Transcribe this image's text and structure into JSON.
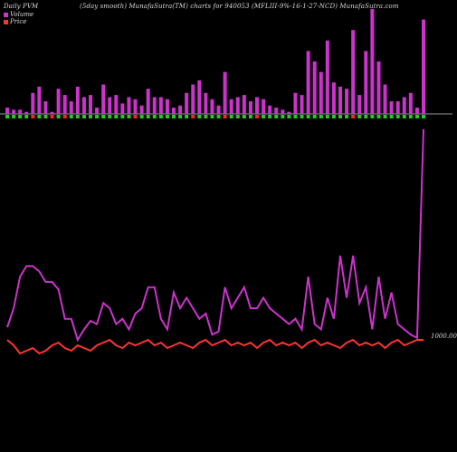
{
  "header": {
    "left": "Daily PVM",
    "center": "(5day smooth) MunafaSutra(TM) charts for 940053",
    "right": "(MFLIII-9%-16-1-27-NCD) MunafaSutra.com"
  },
  "legend": [
    {
      "label": "Volume",
      "color": "#cc33cc"
    },
    {
      "label": "Price",
      "color": "#ff3333"
    }
  ],
  "price_label": "1000.00",
  "chart_data": {
    "type": "line",
    "panels": [
      "volume bars above baseline",
      "price/volume lines below"
    ],
    "x": [
      1,
      2,
      3,
      4,
      5,
      6,
      7,
      8,
      9,
      10,
      11,
      12,
      13,
      14,
      15,
      16,
      17,
      18,
      19,
      20,
      21,
      22,
      23,
      24,
      25,
      26,
      27,
      28,
      29,
      30,
      31,
      32,
      33,
      34,
      35,
      36,
      37,
      38,
      39,
      40,
      41,
      42,
      43,
      44,
      45,
      46,
      47,
      48,
      49,
      50,
      51,
      52,
      53,
      54,
      55,
      56,
      57,
      58,
      59,
      60,
      61,
      62,
      63,
      64,
      65,
      66
    ],
    "volume_bars": [
      3,
      2,
      2,
      1,
      10,
      13,
      6,
      1,
      12,
      9,
      6,
      13,
      8,
      9,
      3,
      14,
      8,
      9,
      5,
      8,
      7,
      4,
      12,
      8,
      8,
      7,
      3,
      4,
      10,
      14,
      16,
      10,
      7,
      4,
      20,
      7,
      8,
      9,
      6,
      8,
      7,
      4,
      3,
      2,
      1,
      10,
      9,
      30,
      25,
      20,
      35,
      15,
      13,
      12,
      40,
      9,
      30,
      50,
      25,
      14,
      6,
      6,
      8,
      10,
      3,
      45
    ],
    "volume_bar_colors": [
      "green",
      "green",
      "green",
      "green",
      "red",
      "green",
      "green",
      "red",
      "green",
      "red",
      "green",
      "green",
      "green",
      "green",
      "green",
      "green",
      "green",
      "green",
      "green",
      "green",
      "red",
      "green",
      "green",
      "green",
      "green",
      "green",
      "green",
      "green",
      "green",
      "red",
      "green",
      "green",
      "green",
      "green",
      "red",
      "green",
      "green",
      "green",
      "green",
      "red",
      "green",
      "green",
      "green",
      "green",
      "green",
      "green",
      "green",
      "green",
      "green",
      "green",
      "green",
      "green",
      "green",
      "green",
      "red",
      "green",
      "green",
      "green",
      "green",
      "green",
      "green",
      "green",
      "green",
      "green",
      "green",
      "green"
    ],
    "series": [
      {
        "name": "Volume",
        "color": "#cc33cc",
        "values": [
          12,
          30,
          60,
          70,
          70,
          65,
          55,
          55,
          48,
          20,
          20,
          0,
          10,
          18,
          15,
          35,
          30,
          15,
          20,
          10,
          25,
          30,
          50,
          50,
          20,
          10,
          45,
          30,
          40,
          30,
          20,
          25,
          5,
          8,
          50,
          30,
          40,
          50,
          30,
          30,
          40,
          30,
          25,
          20,
          15,
          20,
          10,
          60,
          15,
          10,
          40,
          20,
          80,
          40,
          80,
          35,
          50,
          10,
          60,
          20,
          45,
          15,
          10,
          5,
          2,
          200
        ]
      },
      {
        "name": "Price",
        "color": "#ff3333",
        "values": [
          1000,
          999.8,
          999.5,
          999.6,
          999.7,
          999.5,
          999.6,
          999.8,
          999.9,
          999.7,
          999.6,
          999.8,
          999.7,
          999.6,
          999.8,
          999.9,
          1000,
          999.8,
          999.7,
          999.9,
          999.8,
          999.9,
          1000,
          999.8,
          999.9,
          999.7,
          999.8,
          999.9,
          999.8,
          999.7,
          999.9,
          1000,
          999.8,
          999.9,
          1000,
          999.8,
          999.9,
          999.8,
          999.9,
          999.7,
          999.9,
          1000,
          999.8,
          999.9,
          999.8,
          999.9,
          999.7,
          999.9,
          1000,
          999.8,
          999.9,
          999.8,
          999.7,
          999.9,
          1000,
          999.8,
          999.9,
          999.8,
          999.9,
          999.7,
          999.9,
          1000,
          999.8,
          999.9,
          1000,
          1000
        ]
      }
    ],
    "ylim_price": [
      999,
      1001
    ],
    "title": "(5day smooth) MunafaSutra(TM) charts for 940053",
    "grid": false,
    "legend_position": "top-left"
  }
}
